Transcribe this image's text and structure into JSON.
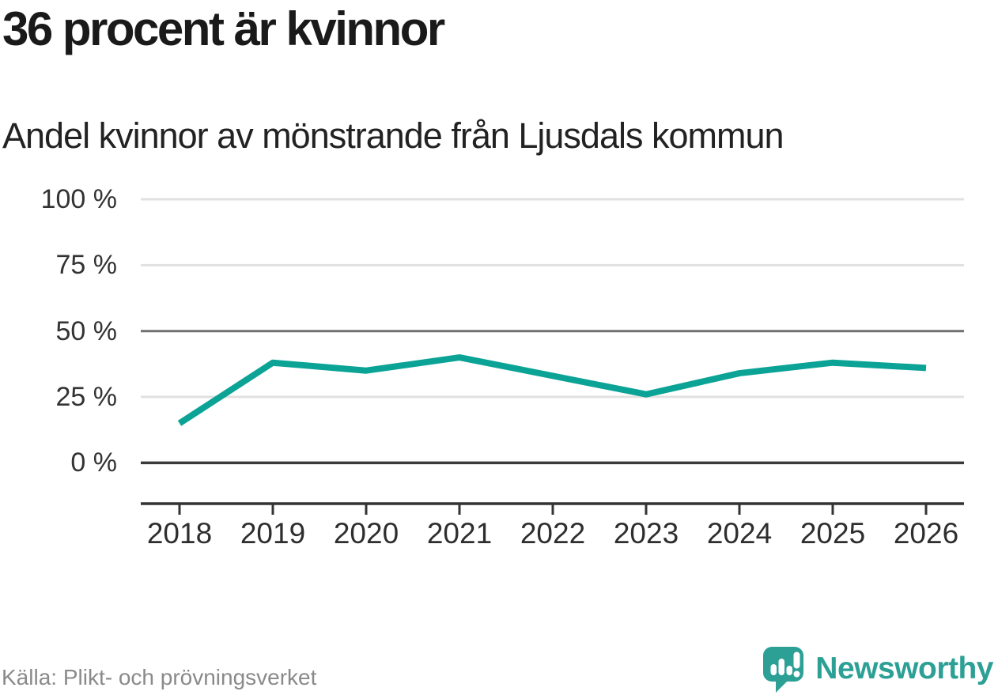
{
  "header": {
    "title": "36 procent är kvinnor",
    "subtitle": "Andel kvinnor av mönstrande från Ljusdals kommun"
  },
  "chart_data": {
    "type": "line",
    "title": "36 procent är kvinnor",
    "subtitle": "Andel kvinnor av mönstrande från Ljusdals kommun",
    "categories": [
      "2018",
      "2019",
      "2020",
      "2021",
      "2022",
      "2023",
      "2024",
      "2025",
      "2026"
    ],
    "values": [
      15,
      38,
      35,
      40,
      33,
      26,
      34,
      38,
      36
    ],
    "unit": "%",
    "ylim": [
      0,
      100
    ],
    "yticks": [
      0,
      25,
      50,
      75,
      100
    ],
    "ytick_labels": [
      "0 %",
      "25 %",
      "50 %",
      "75 %",
      "100 %"
    ],
    "xlabel": "",
    "ylabel": "",
    "grid": "horizontal",
    "legend": "none",
    "line_color": "#0ba396"
  },
  "footer": {
    "source": "Källa: Plikt- och prövningsverket",
    "brand": "Newsworthy"
  },
  "colors": {
    "accent": "#0ba396",
    "logo_teal": "#2da096",
    "grid_light": "#e1e1e1",
    "grid_mid": "#707070",
    "axis_dark": "#333333",
    "zero_line": "#3a3a3a",
    "text_dark": "#1a1a1a",
    "source_gray": "#8a8a8a"
  }
}
